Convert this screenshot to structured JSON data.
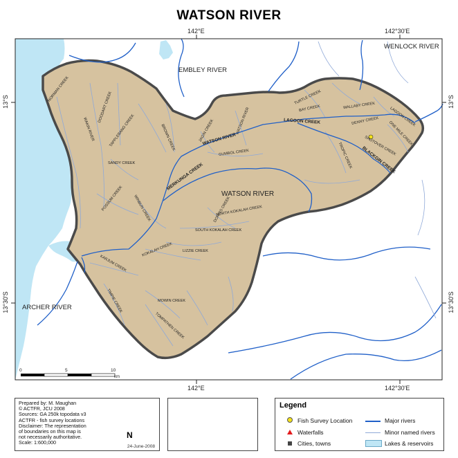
{
  "title": "WATSON RIVER",
  "graticule": {
    "lon_top_1": "142°E",
    "lon_top_2": "142°30'E",
    "lon_bottom_1": "142°E",
    "lon_bottom_2": "142°30'E",
    "lat_left_1": "13°S",
    "lat_left_2": "13°30'S",
    "lat_right_1": "13°S",
    "lat_right_2": "13°30'S"
  },
  "regions": {
    "wenlock": "WENLOCK RIVER",
    "embley": "EMBLEY RIVER",
    "archer": "ARCHER RIVER",
    "watson": "WATSON RIVER"
  },
  "rivers": {
    "watson_river": "WATSON RIVER",
    "lagoon_creek": "LAGOON CREEK",
    "blackgin_creek": "BLACKGIN CREEK",
    "merkunga_creek": "MERKUNGA CREEK",
    "watson_river_nw": "WATSON RIVER"
  },
  "creeks": {
    "norman": "NORMAN CREEK",
    "doodart": "DOODART CREEK",
    "wakin": "WAKIN RIVER",
    "tapplebang": "TAPPLEBANG CREEK",
    "sandy": "SANDY CREEK",
    "possum": "POSSUM CREEK",
    "winbun": "WINBUN CREEK",
    "brown": "BROWN CREEK",
    "jagin": "JAGIN CREEK",
    "gumbol": "GUMBOL CREEK",
    "turtle": "TURTLE CREEK",
    "bay": "BAY CREEK",
    "wallaby": "WALLABY CREEK",
    "denny": "DENNY CREEK",
    "lagoon_small": "LAGOON CREEK",
    "one_mile": "ONE MILE CREEK",
    "shotover": "SHOTOVER CREEK",
    "tropic": "TROPIC CREEK",
    "dorris": "DORRIS CREEK",
    "north_kokalah": "NORTH KOKALAH CREEK",
    "south_kokalah": "SOUTH KOKALAH CREEK",
    "kokalah": "KOKALAH CREEK",
    "lizzie": "LIZZIE CREEK",
    "karjum": "KARJUM CREEK",
    "timpie": "TIMPIE CREEK",
    "mowin": "MOWIN CREEK",
    "tompathen": "TOMPATHEN CREEK"
  },
  "scale": {
    "ticks": [
      "0",
      "5",
      "10"
    ],
    "unit": "km"
  },
  "info": {
    "lines": [
      "Prepared by: M. Maughan",
      "©    ACTFR,    JCU    2008",
      "Sources: GA 250k topodata v3",
      "ACTFR - fish survey locations",
      "Disclaimer: The representation",
      "of boundaries on this map is",
      "not necessarily authoritative.",
      "Scale:  1:600,000"
    ],
    "date": "24-June-2008"
  },
  "north_label": "N",
  "legend": {
    "title": "Legend",
    "fish": "Fish Survey Location",
    "waterfalls": "Waterfalls",
    "cities": "Cities, towns",
    "major": "Major rivers",
    "minor": "Minor named rivers",
    "lakes": "Lakes & reservoirs"
  },
  "colors": {
    "sea": "#bfe6f5",
    "catchment": "#d6c29f",
    "boundary": "#4a4a4a",
    "major_river": "#1f5fc8",
    "minor_river": "#8fa9d8",
    "fish_marker": "#f4e21b",
    "waterfall_marker": "#e31a1c",
    "city_marker": "#444444"
  }
}
